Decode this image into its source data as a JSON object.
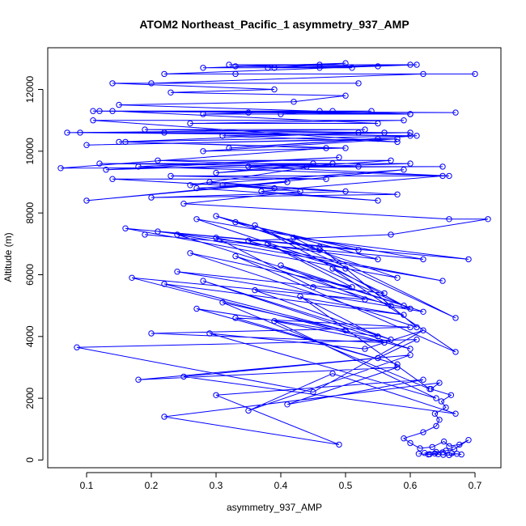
{
  "chart_data": {
    "type": "scatter",
    "title": "ATOM2 Northeast_Pacific_1 asymmetry_937_AMP",
    "xlabel": "asymmetry_937_AMP",
    "ylabel": "Altitude (m)",
    "xlim": [
      0.04,
      0.74
    ],
    "ylim": [
      -250,
      13350
    ],
    "x_ticks": [
      0.1,
      0.2,
      0.3,
      0.4,
      0.5,
      0.6,
      0.7
    ],
    "x_tick_labels": [
      "0.1",
      "0.2",
      "0.3",
      "0.4",
      "0.5",
      "0.6",
      "0.7"
    ],
    "y_ticks": [
      0,
      2000,
      4000,
      6000,
      8000,
      10000,
      12000
    ],
    "y_tick_labels": [
      "0",
      "2000",
      "4000",
      "6000",
      "8000",
      "10000",
      "12000"
    ],
    "grid": false,
    "legend": "none",
    "color": "#0000ff",
    "marker": "open-circle",
    "connected": true,
    "series": [
      {
        "x": [
          0.613,
          0.628,
          0.643,
          0.651,
          0.66,
          0.672,
          0.679,
          0.664,
          0.65,
          0.638,
          0.63,
          0.622,
          0.64,
          0.655,
          0.668,
          0.69,
          0.676,
          0.66,
          0.652,
          0.634,
          0.615,
          0.6,
          0.59,
          0.62,
          0.64,
          0.645,
          0.638,
          0.655,
          0.648,
          0.663,
          0.632,
          0.645,
          0.22,
          0.49,
          0.3,
          0.62,
          0.41,
          0.58,
          0.18,
          0.6,
          0.35,
          0.48,
          0.67,
          0.25,
          0.55,
          0.61,
          0.085,
          0.45,
          0.62,
          0.53,
          0.29,
          0.64,
          0.39,
          0.56,
          0.2,
          0.6,
          0.33,
          0.58,
          0.27,
          0.55,
          0.43,
          0.63,
          0.31,
          0.5,
          0.22,
          0.59,
          0.36,
          0.57,
          0.28,
          0.6,
          0.17,
          0.53,
          0.4,
          0.62,
          0.24,
          0.56,
          0.48,
          0.67,
          0.33,
          0.57,
          0.46,
          0.61,
          0.26,
          0.51,
          0.38,
          0.6,
          0.45,
          0.3,
          0.65,
          0.24,
          0.59,
          0.36,
          0.67,
          0.42,
          0.69,
          0.16,
          0.58,
          0.33,
          0.52,
          0.21,
          0.55,
          0.3,
          0.46,
          0.19,
          0.62,
          0.27,
          0.5,
          0.35,
          0.57,
          0.72,
          0.66,
          0.25,
          0.43,
          0.31,
          0.58,
          0.2,
          0.5,
          0.29,
          0.39,
          0.14,
          0.47,
          0.23,
          0.65,
          0.37,
          0.55,
          0.27,
          0.41,
          0.1,
          0.59,
          0.26,
          0.48,
          0.35,
          0.66,
          0.18,
          0.49,
          0.13,
          0.45,
          0.3,
          0.57,
          0.21,
          0.52,
          0.12,
          0.6,
          0.44,
          0.65,
          0.06,
          0.47,
          0.16,
          0.5,
          0.28,
          0.58,
          0.1,
          0.55,
          0.32,
          0.61,
          0.15,
          0.52,
          0.22,
          0.6,
          0.09,
          0.56,
          0.19,
          0.53,
          0.07,
          0.6,
          0.31,
          0.58,
          0.11,
          0.59,
          0.26,
          0.55,
          0.14,
          0.48,
          0.4,
          0.6,
          0.11,
          0.54,
          0.35,
          0.67,
          0.12,
          0.46,
          0.28,
          0.6,
          0.15,
          0.42,
          0.5,
          0.23,
          0.39,
          0.14,
          0.52,
          0.2,
          0.62,
          0.33,
          0.7,
          0.22,
          0.61,
          0.32,
          0.55,
          0.46,
          0.28,
          0.5,
          0.39,
          0.6,
          0.38,
          0.46,
          0.33,
          0.51
        ],
        "y": [
          200,
          180,
          190,
          170,
          160,
          200,
          180,
          220,
          250,
          210,
          190,
          230,
          260,
          300,
          350,
          650,
          500,
          450,
          600,
          420,
          380,
          550,
          700,
          900,
          1100,
          1300,
          1500,
          1700,
          1900,
          2100,
          2300,
          2500,
          1400,
          500,
          2100,
          2600,
          1800,
          3000,
          2600,
          3400,
          1600,
          2800,
          1500,
          2700,
          3300,
          3900,
          3650,
          2200,
          4200,
          3600,
          4100,
          2000,
          4500,
          3800,
          4100,
          4300,
          4600,
          3100,
          4900,
          4000,
          5300,
          2300,
          5100,
          4200,
          5700,
          4700,
          5500,
          3900,
          5800,
          3600,
          5900,
          5200,
          6300,
          4800,
          6100,
          5400,
          6200,
          3500,
          6600,
          5000,
          6900,
          4300,
          6700,
          5600,
          7000,
          4900,
          5600,
          7200,
          5800,
          7300,
          5000,
          7600,
          4600,
          7200,
          6500,
          7500,
          5900,
          7700,
          6800,
          7400,
          6500,
          7900,
          6800,
          7300,
          6500,
          7800,
          6200,
          7100,
          7300,
          7800,
          7800,
          8300,
          8700,
          8900,
          8600,
          8500,
          8700,
          9000,
          8800,
          9100,
          9100,
          9200,
          9200,
          8700,
          8400,
          8800,
          9000,
          8400,
          9400,
          8900,
          9600,
          9500,
          9200,
          9500,
          9800,
          9400,
          9600,
          9300,
          9700,
          9700,
          9500,
          9600,
          9600,
          9500,
          9500,
          9450,
          10100,
          10300,
          10100,
          10000,
          10400,
          10200,
          10400,
          10100,
          10500,
          10300,
          10600,
          10600,
          10500,
          10600,
          10600,
          10700,
          10700,
          10600,
          10600,
          10500,
          10300,
          11000,
          11000,
          10900,
          10900,
          11300,
          11300,
          11200,
          11200,
          11300,
          11300,
          11250,
          11250,
          11300,
          11300,
          11200,
          11200,
          11500,
          11600,
          11800,
          11900,
          12000,
          12200,
          12200,
          12200,
          12500,
          12500,
          12500,
          12500,
          12800,
          12800,
          12750,
          12700,
          12700,
          12850,
          12700,
          12800,
          12700,
          12800,
          12750,
          12700
        ]
      }
    ]
  }
}
